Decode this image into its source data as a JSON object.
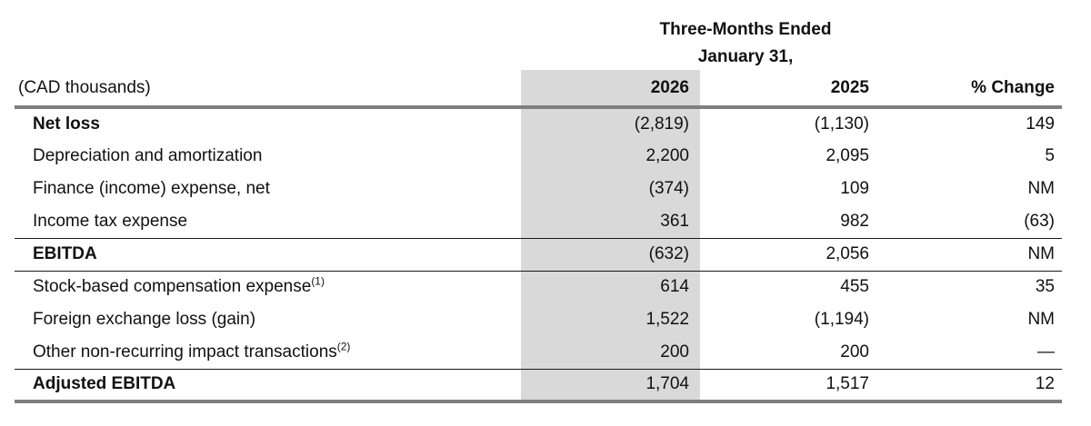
{
  "header": {
    "period_line1": "Three-Months Ended",
    "period_line2": "January 31,",
    "unit_label": "(CAD thousands)",
    "col_2026": "2026",
    "col_2025": "2025",
    "col_change": "% Change"
  },
  "colors": {
    "highlight_column_bg": "#d9d9d9",
    "thick_rule": "#7f7f7f",
    "thin_rule": "#1a1a1a"
  },
  "rows": [
    {
      "label": "Net loss",
      "sup": "",
      "v2026": "(2,819)",
      "v2025": "(1,130)",
      "change": "149",
      "bold": true,
      "rule_above": "none",
      "rule_below": "none"
    },
    {
      "label": "Depreciation and amortization",
      "sup": "",
      "v2026": "2,200",
      "v2025": "2,095",
      "change": "5",
      "bold": false,
      "rule_above": "none",
      "rule_below": "none"
    },
    {
      "label": "Finance (income) expense, net",
      "sup": "",
      "v2026": "(374)",
      "v2025": "109",
      "change": "NM",
      "bold": false,
      "rule_above": "none",
      "rule_below": "none"
    },
    {
      "label": "Income tax expense",
      "sup": "",
      "v2026": "361",
      "v2025": "982",
      "change": "(63)",
      "bold": false,
      "rule_above": "none",
      "rule_below": "none"
    },
    {
      "label": "EBITDA",
      "sup": "",
      "v2026": "(632)",
      "v2025": "2,056",
      "change": "NM",
      "bold": true,
      "rule_above": "thin",
      "rule_below": "none"
    },
    {
      "label": "Stock-based compensation expense",
      "sup": "(1)",
      "v2026": "614",
      "v2025": "455",
      "change": "35",
      "bold": false,
      "rule_above": "thin",
      "rule_below": "none"
    },
    {
      "label": "Foreign exchange loss (gain)",
      "sup": "",
      "v2026": "1,522",
      "v2025": "(1,194)",
      "change": "NM",
      "bold": false,
      "rule_above": "none",
      "rule_below": "none"
    },
    {
      "label": "Other non-recurring impact transactions",
      "sup": "(2)",
      "v2026": "200",
      "v2025": "200",
      "change": "—",
      "bold": false,
      "rule_above": "none",
      "rule_below": "none"
    },
    {
      "label": "Adjusted EBITDA",
      "sup": "",
      "v2026": "1,704",
      "v2025": "1,517",
      "change": "12",
      "bold": true,
      "rule_above": "thin",
      "rule_below": "thick"
    }
  ]
}
